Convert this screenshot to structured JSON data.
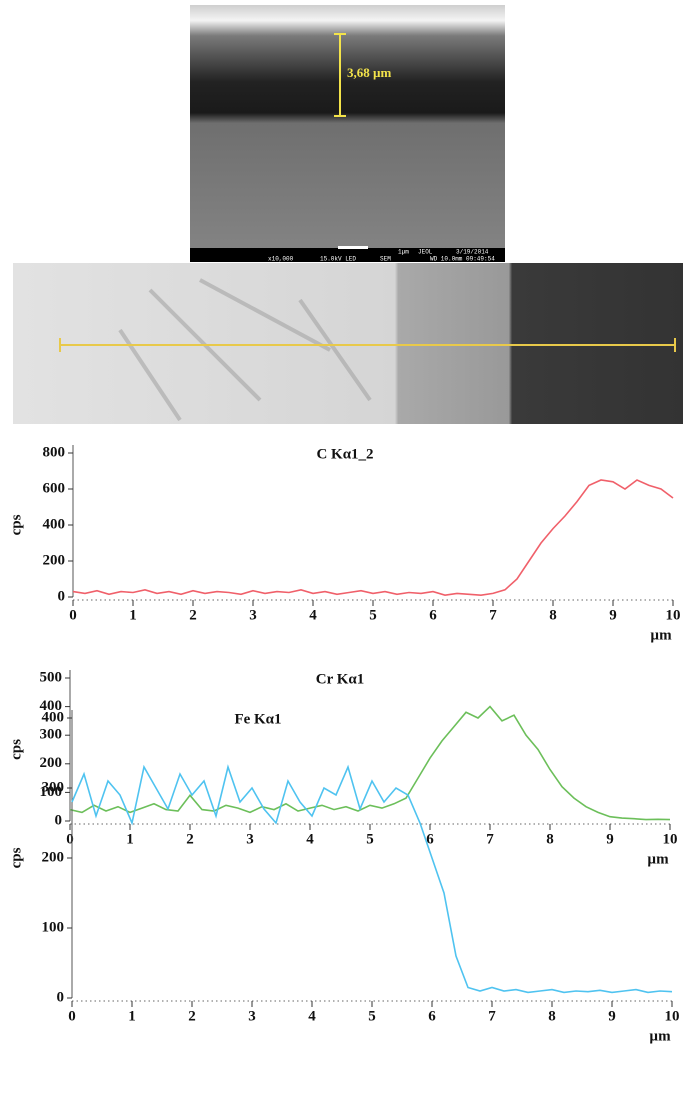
{
  "sem_image": {
    "measurement": "3,68 µm",
    "scale": "1µm",
    "maker": "JEOL",
    "date": "3/19/2014",
    "magnification": "x10,000",
    "voltage": "15.0kV LED",
    "mode": "SEM",
    "wd_time": "WD 10.0mm 09:49:54"
  },
  "chart_data": [
    {
      "type": "line",
      "title": "C Kα1_2",
      "ylabel": "cps",
      "xlabel": "µm",
      "color": "#f0606a",
      "xlim": [
        0,
        10
      ],
      "ylim": [
        0,
        800
      ],
      "xticks": [
        0,
        1,
        2,
        3,
        4,
        5,
        6,
        7,
        8,
        9,
        10
      ],
      "yticks": [
        0,
        200,
        400,
        600,
        800
      ],
      "x": [
        0,
        0.2,
        0.4,
        0.6,
        0.8,
        1,
        1.2,
        1.4,
        1.6,
        1.8,
        2,
        2.2,
        2.4,
        2.6,
        2.8,
        3,
        3.2,
        3.4,
        3.6,
        3.8,
        4,
        4.2,
        4.4,
        4.6,
        4.8,
        5,
        5.2,
        5.4,
        5.6,
        5.8,
        6,
        6.2,
        6.4,
        6.6,
        6.8,
        7,
        7.2,
        7.4,
        7.6,
        7.8,
        8,
        8.2,
        8.4,
        8.6,
        8.8,
        9,
        9.2,
        9.4,
        9.6,
        9.8,
        10
      ],
      "values": [
        30,
        20,
        35,
        15,
        30,
        25,
        40,
        20,
        30,
        15,
        35,
        20,
        30,
        25,
        15,
        35,
        20,
        30,
        25,
        40,
        20,
        30,
        15,
        25,
        35,
        20,
        30,
        15,
        25,
        20,
        30,
        10,
        20,
        15,
        10,
        20,
        40,
        100,
        200,
        300,
        380,
        450,
        530,
        620,
        650,
        640,
        600,
        650,
        620,
        600,
        550
      ]
    },
    {
      "type": "line",
      "title": "Cr Kα1",
      "ylabel": "cps",
      "xlabel": "µm",
      "color": "#6cbf5a",
      "xlim": [
        0,
        10
      ],
      "ylim": [
        0,
        500
      ],
      "xticks": [
        0,
        1,
        2,
        3,
        4,
        5,
        6,
        7,
        8,
        9,
        10
      ],
      "yticks": [
        0,
        100,
        200,
        300,
        400,
        500
      ],
      "x": [
        0,
        0.2,
        0.4,
        0.6,
        0.8,
        1,
        1.2,
        1.4,
        1.6,
        1.8,
        2,
        2.2,
        2.4,
        2.6,
        2.8,
        3,
        3.2,
        3.4,
        3.6,
        3.8,
        4,
        4.2,
        4.4,
        4.6,
        4.8,
        5,
        5.2,
        5.4,
        5.6,
        5.8,
        6,
        6.2,
        6.4,
        6.6,
        6.8,
        7,
        7.2,
        7.4,
        7.6,
        7.8,
        8,
        8.2,
        8.4,
        8.6,
        8.8,
        9,
        9.2,
        9.4,
        9.6,
        9.8,
        10
      ],
      "values": [
        40,
        30,
        55,
        35,
        50,
        30,
        45,
        60,
        40,
        35,
        90,
        40,
        35,
        55,
        45,
        30,
        50,
        40,
        60,
        35,
        45,
        55,
        40,
        50,
        35,
        55,
        45,
        60,
        80,
        150,
        220,
        280,
        330,
        380,
        360,
        400,
        350,
        370,
        300,
        250,
        180,
        120,
        80,
        50,
        30,
        15,
        10,
        8,
        5,
        6,
        5
      ]
    },
    {
      "type": "line",
      "title": "Fe Kα1",
      "ylabel": "cps",
      "xlabel": "µm",
      "color": "#4fc3f0",
      "xlim": [
        0,
        10
      ],
      "ylim": [
        0,
        400
      ],
      "xticks": [
        0,
        1,
        2,
        3,
        4,
        5,
        6,
        7,
        8,
        9,
        10
      ],
      "yticks": [
        0,
        100,
        200,
        300,
        400
      ],
      "x": [
        0,
        0.2,
        0.4,
        0.6,
        0.8,
        1,
        1.2,
        1.4,
        1.6,
        1.8,
        2,
        2.2,
        2.4,
        2.6,
        2.8,
        3,
        3.2,
        3.4,
        3.6,
        3.8,
        4,
        4.2,
        4.4,
        4.6,
        4.8,
        5,
        5.2,
        5.4,
        5.6,
        5.8,
        6,
        6.2,
        6.4,
        6.6,
        6.8,
        7,
        7.2,
        7.4,
        7.6,
        7.8,
        8,
        8.2,
        8.4,
        8.6,
        8.8,
        9,
        9.2,
        9.4,
        9.6,
        9.8,
        10
      ],
      "values": [
        280,
        320,
        260,
        310,
        290,
        250,
        330,
        300,
        270,
        320,
        290,
        310,
        260,
        330,
        280,
        300,
        270,
        250,
        310,
        280,
        260,
        300,
        290,
        330,
        270,
        310,
        280,
        300,
        290,
        250,
        200,
        150,
        60,
        15,
        10,
        15,
        10,
        12,
        8,
        10,
        12,
        8,
        10,
        9,
        11,
        8,
        10,
        12,
        8,
        10,
        9
      ]
    }
  ]
}
